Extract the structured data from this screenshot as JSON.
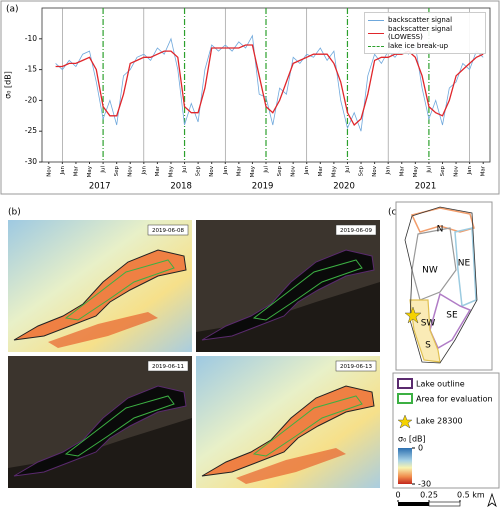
{
  "panel_labels": [
    "(a)",
    "(b)",
    "(c)"
  ],
  "chart_data": {
    "type": "line",
    "ylabel": "σ₀ [dB]",
    "x": [
      "2016-12",
      "2017-01",
      "2017-02",
      "2017-03",
      "2017-04",
      "2017-05",
      "2017-06",
      "2017-07",
      "2017-08",
      "2017-09",
      "2017-10",
      "2017-11",
      "2017-12",
      "2018-01",
      "2018-02",
      "2018-03",
      "2018-04",
      "2018-05",
      "2018-06",
      "2018-07",
      "2018-08",
      "2018-09",
      "2018-10",
      "2018-11",
      "2018-12",
      "2019-01",
      "2019-02",
      "2019-03",
      "2019-04",
      "2019-05",
      "2019-06",
      "2019-07",
      "2019-08",
      "2019-09",
      "2019-10",
      "2019-11",
      "2019-12",
      "2020-01",
      "2020-02",
      "2020-03",
      "2020-04",
      "2020-05",
      "2020-06",
      "2020-07",
      "2020-08",
      "2020-09",
      "2020-10",
      "2020-11",
      "2020-12",
      "2021-01",
      "2021-02",
      "2021-03",
      "2021-04",
      "2021-05",
      "2021-06",
      "2021-07",
      "2021-08",
      "2021-09",
      "2021-10",
      "2021-11",
      "2021-12",
      "2022-01",
      "2022-02",
      "2022-03"
    ],
    "series": [
      {
        "name": "backscatter signal",
        "color": "#6fa8dc",
        "values": [
          -14,
          -15,
          -13.5,
          -14.5,
          -12.5,
          -12,
          -17,
          -23,
          -20,
          -24,
          -16,
          -15,
          -13,
          -12.5,
          -13.5,
          -11.5,
          -12.5,
          -10,
          -15,
          -24,
          -20.5,
          -23.5,
          -15,
          -11,
          -12,
          -11,
          -12,
          -10.5,
          -11.5,
          -9.5,
          -19,
          -19.5,
          -24,
          -18,
          -19,
          -13,
          -14,
          -12.5,
          -13,
          -11.5,
          -13.5,
          -12,
          -20,
          -24.5,
          -22,
          -25,
          -16,
          -12.5,
          -14,
          -12,
          -13,
          -11.5,
          -12.5,
          -11,
          -18,
          -23,
          -20,
          -24,
          -18,
          -17,
          -14,
          -15,
          -12,
          -13
        ]
      },
      {
        "name": "backscatter signal (LOWESS)",
        "color": "#e0262b",
        "values": [
          -14.5,
          -14.5,
          -14,
          -14,
          -13.5,
          -13,
          -15,
          -21,
          -22.5,
          -22.5,
          -19,
          -14,
          -13.5,
          -13,
          -13,
          -12.5,
          -12,
          -12,
          -13,
          -21,
          -22,
          -22,
          -18,
          -11.5,
          -11.5,
          -11.5,
          -11.5,
          -11.5,
          -11,
          -11,
          -16,
          -21,
          -22,
          -20,
          -17,
          -14,
          -13.5,
          -13,
          -12.5,
          -12.5,
          -12.5,
          -14,
          -17,
          -22,
          -24,
          -23,
          -19,
          -13.5,
          -13,
          -13,
          -12.5,
          -12.5,
          -12,
          -13,
          -16,
          -21,
          -22,
          -22.5,
          -20,
          -16,
          -15,
          -14,
          -13,
          -12.5
        ]
      }
    ],
    "breakup": {
      "name": "lake ice break-up",
      "color": "#2ca02c",
      "dates": [
        "2017-07",
        "2018-07",
        "2019-07",
        "2020-07",
        "2021-07"
      ]
    },
    "xlim": [
      "2016-10",
      "2022-04"
    ],
    "xticks": [
      {
        "value": "2016-11",
        "label": "Nov"
      },
      {
        "value": "2017-01",
        "label": "Jan"
      },
      {
        "value": "2017-03",
        "label": "Mar"
      },
      {
        "value": "2017-05",
        "label": "May"
      },
      {
        "value": "2017-07",
        "label": "Jul"
      },
      {
        "value": "2017-09",
        "label": "Sep"
      },
      {
        "value": "2017-11",
        "label": "Nov"
      },
      {
        "value": "2018-01",
        "label": "Jan"
      },
      {
        "value": "2018-03",
        "label": "Mar"
      },
      {
        "value": "2018-05",
        "label": "May"
      },
      {
        "value": "2018-07",
        "label": "Jul"
      },
      {
        "value": "2018-09",
        "label": "Sep"
      },
      {
        "value": "2018-11",
        "label": "Nov"
      },
      {
        "value": "2019-01",
        "label": "Jan"
      },
      {
        "value": "2019-03",
        "label": "Mar"
      },
      {
        "value": "2019-05",
        "label": "May"
      },
      {
        "value": "2019-07",
        "label": "Jul"
      },
      {
        "value": "2019-09",
        "label": "Sep"
      },
      {
        "value": "2019-11",
        "label": "Nov"
      },
      {
        "value": "2020-01",
        "label": "Jan"
      },
      {
        "value": "2020-03",
        "label": "Mar"
      },
      {
        "value": "2020-05",
        "label": "May"
      },
      {
        "value": "2020-07",
        "label": "Jul"
      },
      {
        "value": "2020-09",
        "label": "Sep"
      },
      {
        "value": "2020-11",
        "label": "Nov"
      },
      {
        "value": "2021-01",
        "label": "Jan"
      },
      {
        "value": "2021-03",
        "label": "Mar"
      },
      {
        "value": "2021-05",
        "label": "May"
      },
      {
        "value": "2021-07",
        "label": "Jul"
      },
      {
        "value": "2021-09",
        "label": "Sep"
      },
      {
        "value": "2021-11",
        "label": "Nov"
      },
      {
        "value": "2022-01",
        "label": "Jan"
      },
      {
        "value": "2022-03",
        "label": "Mar"
      }
    ],
    "years": [
      2017,
      2018,
      2019,
      2020,
      2021
    ],
    "xgrid": [
      "2017-01",
      "2018-01",
      "2019-01",
      "2020-01",
      "2021-01",
      "2022-01"
    ],
    "ylim": [
      -30,
      -5
    ],
    "yticks": [
      -30,
      -25,
      -20,
      -15,
      -10
    ],
    "legend": "upper right"
  },
  "image_dates": [
    "2019-06-08",
    "2019-06-09",
    "2019-06-11",
    "2019-06-13"
  ],
  "map": {
    "regions": [
      "N",
      "NW",
      "NE",
      "SW",
      "SE",
      "S"
    ]
  },
  "legend": {
    "lake_outline": "Lake outline",
    "evaluation_area": "Area for evaluation",
    "lake": "Lake 28300",
    "colorbar": {
      "label": "σ₀ [dB]",
      "range": [
        -30,
        0
      ],
      "ticks": [
        0,
        -30
      ]
    },
    "scalebar": {
      "ticks": [
        0,
        0.25,
        {
          "value": 0.5,
          "label": "0.5 km"
        }
      ]
    }
  }
}
